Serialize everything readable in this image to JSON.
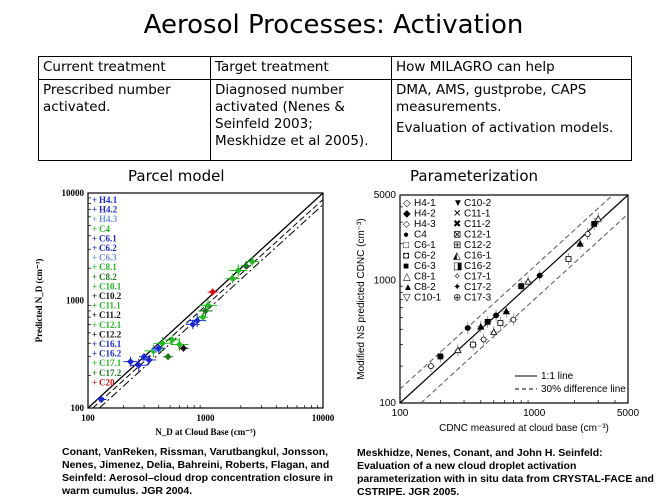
{
  "title": "Aerosol Processes: Activation",
  "table": {
    "headers": [
      "Current treatment",
      "Target treatment",
      "How MILAGRO can help"
    ],
    "current": "Prescribed number activated.",
    "target": "Diagnosed number activated (Nenes & Seinfeld 2003; Meskhidze et al 2005).",
    "milagro_1": "DMA, AMS, gustprobe, CAPS measurements.",
    "milagro_2": "Evaluation of activation models."
  },
  "left_panel": {
    "caption": "Parcel model",
    "reference": "Conant, VanReken, Rissman, Varutbangkul, Jonsson, Nenes, Jimenez, Delia, Bahreini, Roberts, Flagan, and Seinfeld: Aerosol–cloud drop concentration closure in warm cumulus. JGR 2004."
  },
  "right_panel": {
    "caption": "Parameterization",
    "reference": "Meskhidze, Nenes, Conant, and John H. Seinfeld: Evaluation of a new cloud droplet activation parameterization with in situ data from CRYSTAL-FACE and CSTRIPE. JGR 2005."
  },
  "chart_data": [
    {
      "type": "scatter",
      "title": "Parcel model",
      "xlabel": "N_D at Cloud Base (cm⁻³)",
      "ylabel": "Predicted N_D (cm⁻³)",
      "xscale": "log",
      "yscale": "log",
      "xlim": [
        100,
        10000
      ],
      "ylim": [
        100,
        10000
      ],
      "xticks": [
        "100",
        "1000",
        "10000"
      ],
      "yticks": [
        "100",
        "1000",
        "10000"
      ],
      "legend_entries": [
        {
          "label": "H4.1",
          "color": "#1a2ad0"
        },
        {
          "label": "H4.2",
          "color": "#1a2ad0"
        },
        {
          "label": "H4.3",
          "color": "#7090e8"
        },
        {
          "label": "C4",
          "color": "#22bb22"
        },
        {
          "label": "C6.1",
          "color": "#1a2ad0"
        },
        {
          "label": "C6.2",
          "color": "#1a2ad0"
        },
        {
          "label": "C6.3",
          "color": "#7090e8"
        },
        {
          "label": "C8.1",
          "color": "#22bb22"
        },
        {
          "label": "C8.2",
          "color": "#1a7a1a"
        },
        {
          "label": "C10.1",
          "color": "#22bb22"
        },
        {
          "label": "C10.2",
          "color": "#111111"
        },
        {
          "label": "C11.1",
          "color": "#22bb22"
        },
        {
          "label": "C11.2",
          "color": "#111111"
        },
        {
          "label": "C12.1",
          "color": "#22bb22"
        },
        {
          "label": "C12.2",
          "color": "#111111"
        },
        {
          "label": "C16.1",
          "color": "#1a2ad0"
        },
        {
          "label": "C16.2",
          "color": "#1a2ad0"
        },
        {
          "label": "C17.1",
          "color": "#22bb22"
        },
        {
          "label": "C17.2",
          "color": "#1a7a1a"
        },
        {
          "label": "C20",
          "color": "#dd1111"
        }
      ],
      "points": [
        {
          "x": 130,
          "y": 120,
          "color": "#1a2ad0"
        },
        {
          "x": 230,
          "y": 270,
          "color": "#1a2ad0"
        },
        {
          "x": 270,
          "y": 250,
          "color": "#1a2ad0"
        },
        {
          "x": 300,
          "y": 300,
          "color": "#1a2ad0"
        },
        {
          "x": 330,
          "y": 280,
          "color": "#1a2ad0"
        },
        {
          "x": 360,
          "y": 340,
          "color": "#22bb22"
        },
        {
          "x": 380,
          "y": 350,
          "color": "#7090e8"
        },
        {
          "x": 400,
          "y": 360,
          "color": "#1a2ad0"
        },
        {
          "x": 430,
          "y": 400,
          "color": "#22bb22"
        },
        {
          "x": 480,
          "y": 300,
          "color": "#1a7a1a"
        },
        {
          "x": 520,
          "y": 430,
          "color": "#22bb22"
        },
        {
          "x": 600,
          "y": 390,
          "color": "#22bb22"
        },
        {
          "x": 650,
          "y": 360,
          "color": "#111111"
        },
        {
          "x": 780,
          "y": 600,
          "color": "#1a2ad0"
        },
        {
          "x": 850,
          "y": 650,
          "color": "#1a2ad0"
        },
        {
          "x": 950,
          "y": 700,
          "color": "#22bb22"
        },
        {
          "x": 1000,
          "y": 800,
          "color": "#1a7a1a"
        },
        {
          "x": 1050,
          "y": 900,
          "color": "#22bb22"
        },
        {
          "x": 1150,
          "y": 1200,
          "color": "#dd1111"
        },
        {
          "x": 1700,
          "y": 1600,
          "color": "#22bb22"
        },
        {
          "x": 1900,
          "y": 1900,
          "color": "#22bb22"
        },
        {
          "x": 2200,
          "y": 2100,
          "color": "#1a7a1a"
        },
        {
          "x": 2500,
          "y": 2300,
          "color": "#22bb22"
        }
      ],
      "lines": [
        "1:1 line (solid)",
        "dashed fit",
        "dash-dot fit"
      ]
    },
    {
      "type": "scatter",
      "title": "Parameterization",
      "xlabel": "CDNC measured at cloud base (cm⁻³)",
      "ylabel": "Modified NS predicted CDNC (cm⁻³)",
      "xscale": "log",
      "yscale": "log",
      "xlim": [
        100,
        5000
      ],
      "ylim": [
        100,
        5000
      ],
      "xticks": [
        "100",
        "1000",
        "5000"
      ],
      "yticks": [
        "100",
        "1000",
        "5000"
      ],
      "legend_entries": [
        {
          "label": "H4-1",
          "marker": "◇"
        },
        {
          "label": "C10-2",
          "marker": "▼"
        },
        {
          "label": "H4-2",
          "marker": "◆"
        },
        {
          "label": "C11-1",
          "marker": "✕"
        },
        {
          "label": "H4-3",
          "marker": "⬦"
        },
        {
          "label": "C11-2",
          "marker": "✖"
        },
        {
          "label": "C4",
          "marker": "●"
        },
        {
          "label": "C12-1",
          "marker": "⊠"
        },
        {
          "label": "C6-1",
          "marker": "□"
        },
        {
          "label": "C12-2",
          "marker": "⊞"
        },
        {
          "label": "C6-2",
          "marker": "◘"
        },
        {
          "label": "C16-1",
          "marker": "◭"
        },
        {
          "label": "C6-3",
          "marker": "■"
        },
        {
          "label": "C16-2",
          "marker": "◨"
        },
        {
          "label": "C8-1",
          "marker": "△"
        },
        {
          "label": "C17-1",
          "marker": "✧"
        },
        {
          "label": "C8-2",
          "marker": "▲"
        },
        {
          "label": "C17-2",
          "marker": "✦"
        },
        {
          "label": "C10-1",
          "marker": "▽"
        },
        {
          "label": "C17-3",
          "marker": "⊕"
        }
      ],
      "points": [
        {
          "x": 170,
          "y": 200
        },
        {
          "x": 200,
          "y": 240
        },
        {
          "x": 270,
          "y": 270
        },
        {
          "x": 320,
          "y": 410
        },
        {
          "x": 350,
          "y": 300
        },
        {
          "x": 400,
          "y": 420
        },
        {
          "x": 420,
          "y": 330
        },
        {
          "x": 450,
          "y": 460
        },
        {
          "x": 500,
          "y": 380
        },
        {
          "x": 520,
          "y": 520
        },
        {
          "x": 560,
          "y": 450
        },
        {
          "x": 620,
          "y": 560
        },
        {
          "x": 700,
          "y": 480
        },
        {
          "x": 800,
          "y": 900
        },
        {
          "x": 900,
          "y": 980
        },
        {
          "x": 1100,
          "y": 1100
        },
        {
          "x": 1800,
          "y": 1500
        },
        {
          "x": 2200,
          "y": 2000
        },
        {
          "x": 2500,
          "y": 2400
        },
        {
          "x": 2800,
          "y": 2900
        },
        {
          "x": 3000,
          "y": 3200
        }
      ],
      "legend_lines": [
        {
          "label": "1:1 line",
          "style": "solid"
        },
        {
          "label": "30% difference line",
          "style": "dashed"
        }
      ]
    }
  ]
}
